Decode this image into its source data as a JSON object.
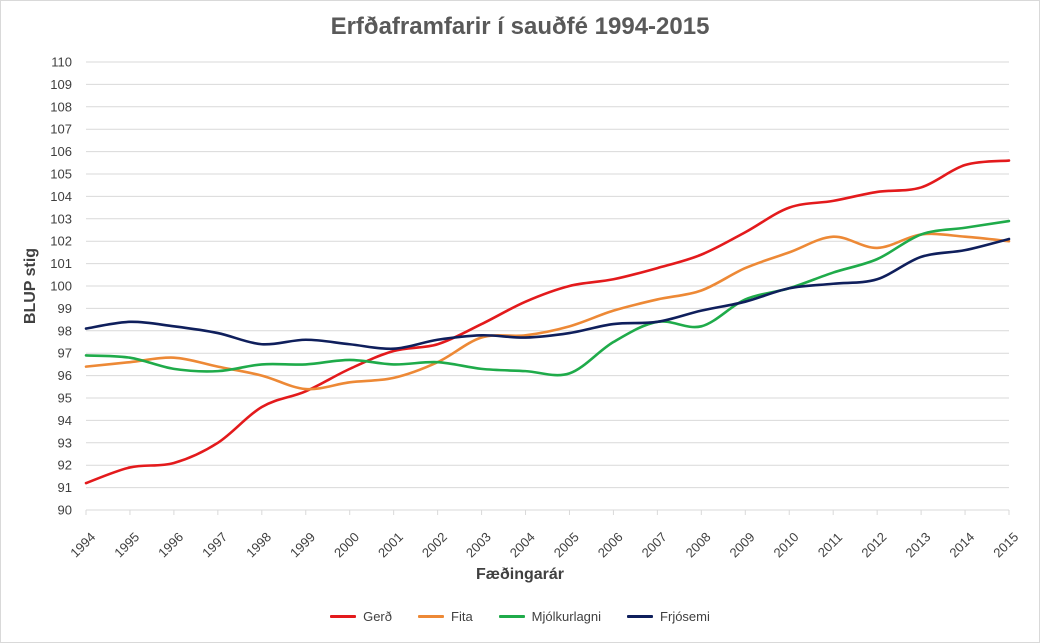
{
  "chart_data": {
    "type": "line",
    "title": "Erfðaframfarir í sauðfé 1994-2015",
    "xlabel": "Fæðingarár",
    "ylabel": "BLUP stig",
    "ylim": [
      90,
      110
    ],
    "y_ticks": [
      90,
      91,
      92,
      93,
      94,
      95,
      96,
      97,
      98,
      99,
      100,
      101,
      102,
      103,
      104,
      105,
      106,
      107,
      108,
      109,
      110
    ],
    "grid": true,
    "legend_position": "bottom",
    "categories": [
      "1994",
      "1995",
      "1996",
      "1997",
      "1998",
      "1999",
      "2000",
      "2001",
      "2002",
      "2003",
      "2004",
      "2005",
      "2006",
      "2007",
      "2008",
      "2009",
      "2010",
      "2011",
      "2012",
      "2013",
      "2014",
      "2015"
    ],
    "series": [
      {
        "name": "Gerð",
        "color": "#e31a1c",
        "values": [
          91.2,
          91.9,
          92.1,
          93.0,
          94.6,
          95.3,
          96.3,
          97.1,
          97.4,
          98.3,
          99.3,
          100.0,
          100.3,
          100.8,
          101.4,
          102.4,
          103.5,
          103.8,
          104.2,
          104.4,
          105.4,
          105.6
        ]
      },
      {
        "name": "Fita",
        "color": "#ed8936",
        "values": [
          96.4,
          96.6,
          96.8,
          96.4,
          96.0,
          95.4,
          95.7,
          95.9,
          96.6,
          97.7,
          97.8,
          98.2,
          98.9,
          99.4,
          99.8,
          100.8,
          101.5,
          102.2,
          101.7,
          102.3,
          102.2,
          102.0
        ]
      },
      {
        "name": "Mjólkurlagni",
        "color": "#1fab4a",
        "values": [
          96.9,
          96.8,
          96.3,
          96.2,
          96.5,
          96.5,
          96.7,
          96.5,
          96.6,
          96.3,
          96.2,
          96.1,
          97.5,
          98.4,
          98.2,
          99.4,
          99.9,
          100.6,
          101.2,
          102.3,
          102.6,
          102.9
        ]
      },
      {
        "name": "Frjósemi",
        "color": "#0f1f5c",
        "values": [
          98.1,
          98.4,
          98.2,
          97.9,
          97.4,
          97.6,
          97.4,
          97.2,
          97.6,
          97.8,
          97.7,
          97.9,
          98.3,
          98.4,
          98.9,
          99.3,
          99.9,
          100.1,
          100.3,
          101.3,
          101.6,
          102.1
        ]
      }
    ]
  }
}
